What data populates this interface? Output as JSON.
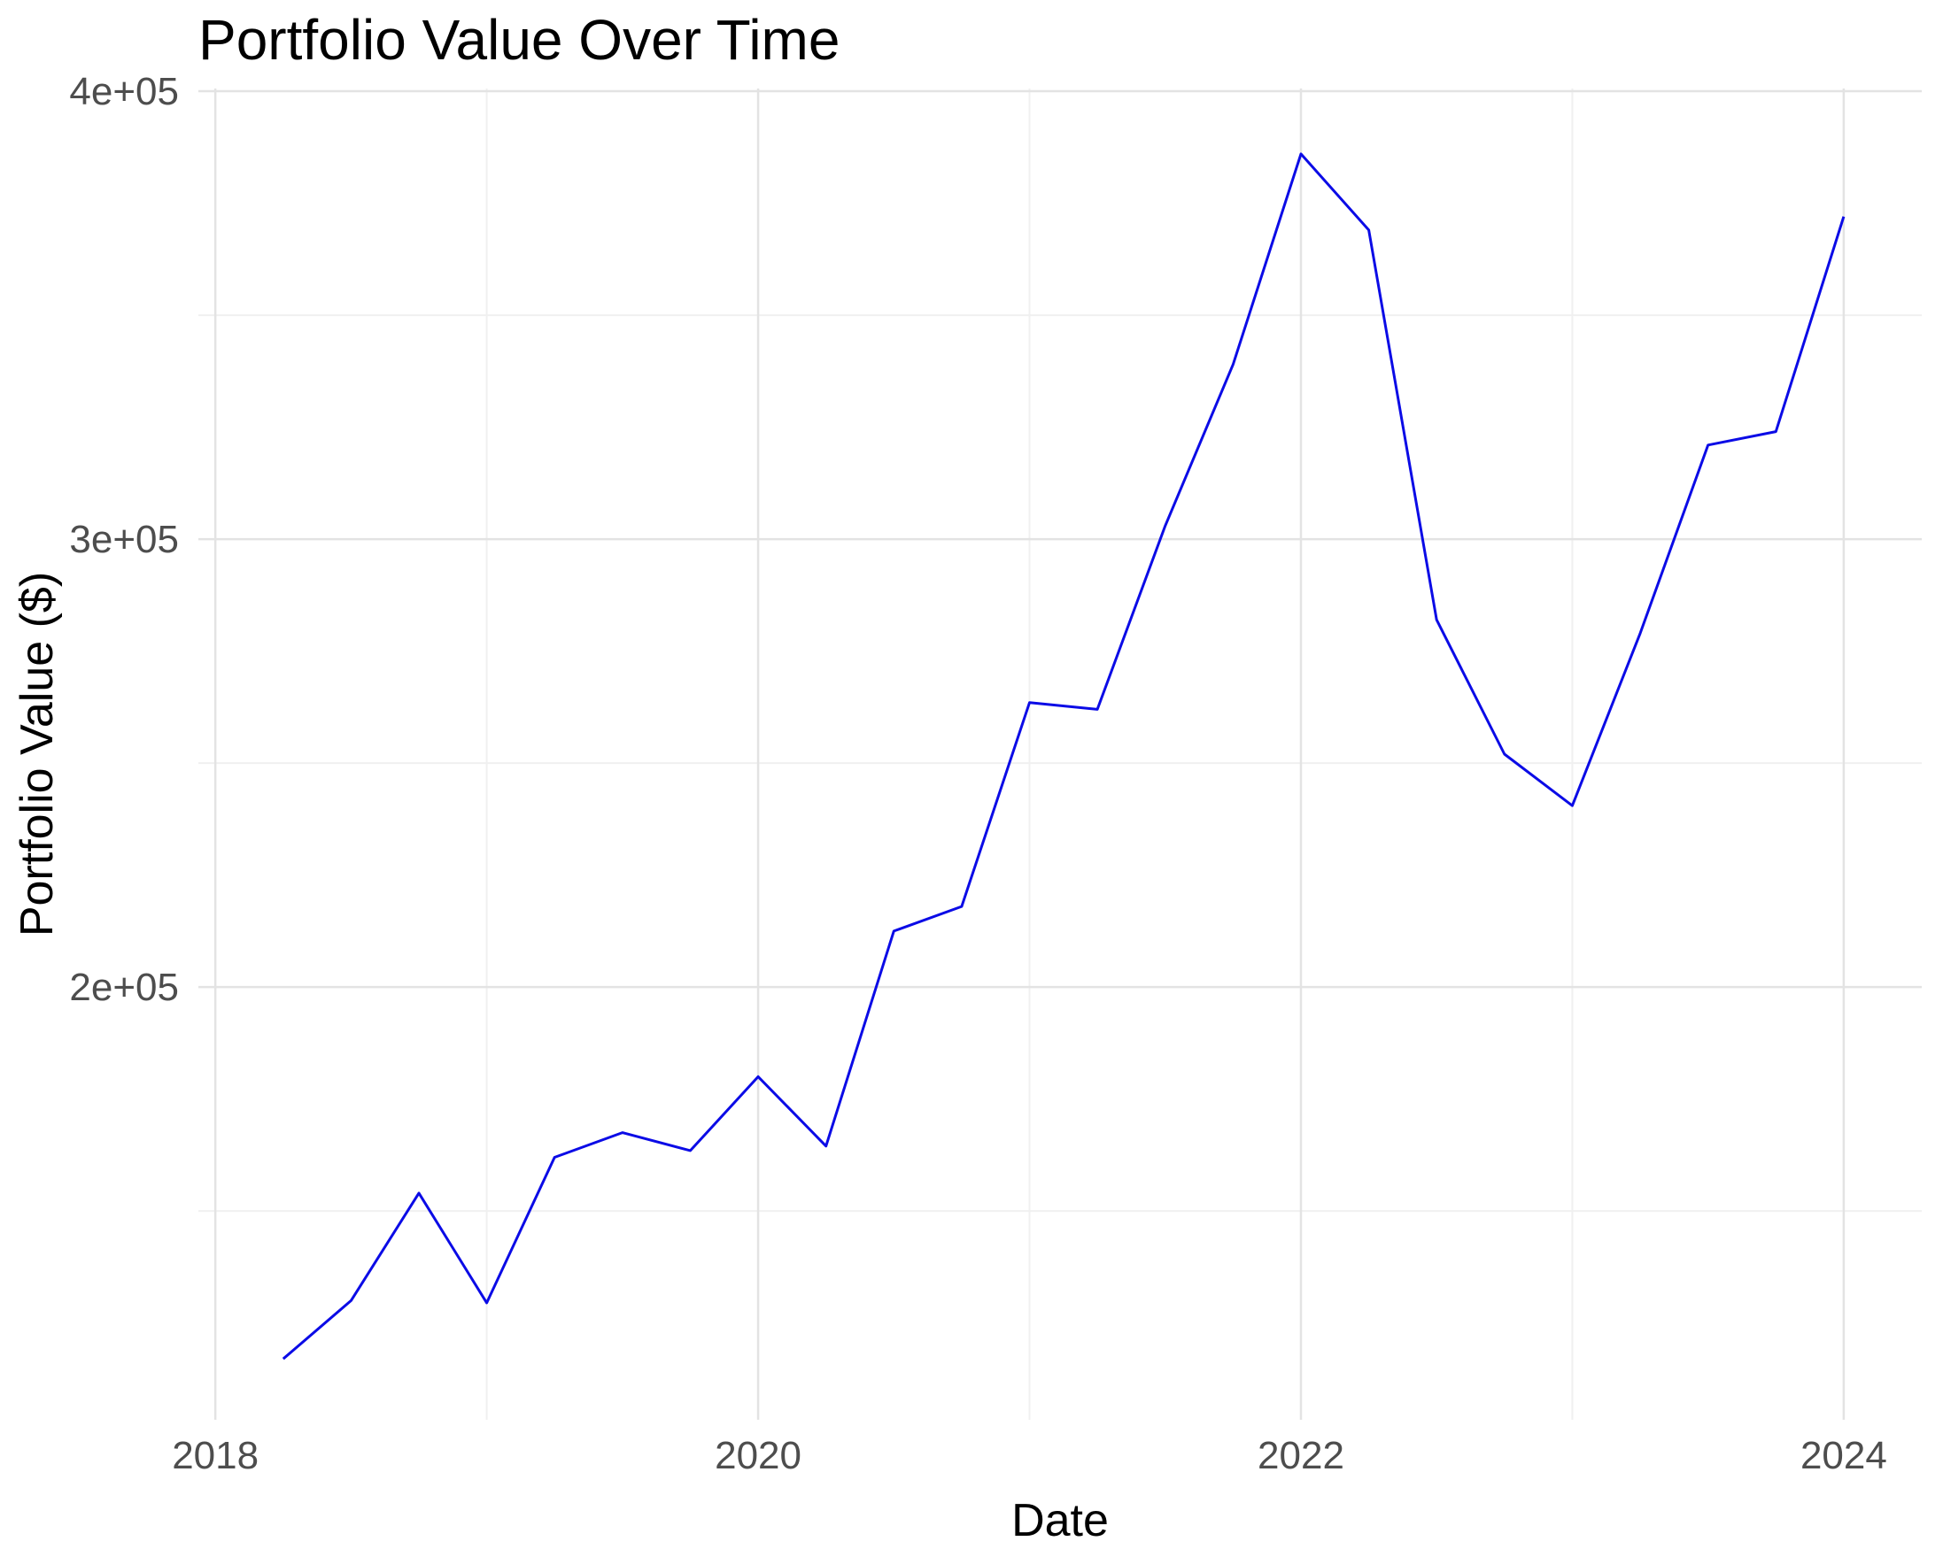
{
  "page": {
    "background": "#FFFFFF"
  },
  "chart_data": {
    "type": "line",
    "title": "Portfolio Value Over Time",
    "xlabel": "Date",
    "ylabel": "Portfolio Value ($)",
    "legend_position": "none",
    "grid": "major and minor, no axis lines, no tick marks",
    "panel_background": "#FFFFFF",
    "line_color": "#0B0BE6",
    "grid_major_color": "#E3E3E3",
    "grid_minor_color": "#F0F0F0",
    "tick_label_color": "#4D4D4D",
    "text_color": "#000000",
    "xlim": [
      2017.9375,
      2024.2875
    ],
    "ylim": [
      103400,
      400600
    ],
    "x_ticks": [
      {
        "x": 2018,
        "label": "2018"
      },
      {
        "x": 2020,
        "label": "2020"
      },
      {
        "x": 2022,
        "label": "2022"
      },
      {
        "x": 2024,
        "label": "2024"
      }
    ],
    "x_minor_ticks": [
      2019,
      2021,
      2023
    ],
    "y_ticks": [
      {
        "y": 200000,
        "label": "2e+05"
      },
      {
        "y": 300000,
        "label": "3e+05"
      },
      {
        "y": 400000,
        "label": "4e+05"
      }
    ],
    "y_minor_ticks": [
      150000,
      250000,
      350000
    ],
    "series": [
      {
        "name": "Portfolio Value",
        "points": [
          {
            "date": "2018-03-31",
            "x": 2018.25,
            "value": 117000
          },
          {
            "date": "2018-06-30",
            "x": 2018.5,
            "value": 130000
          },
          {
            "date": "2018-09-30",
            "x": 2018.75,
            "value": 154000
          },
          {
            "date": "2018-12-31",
            "x": 2019.0,
            "value": 129500
          },
          {
            "date": "2019-03-31",
            "x": 2019.25,
            "value": 162000
          },
          {
            "date": "2019-06-30",
            "x": 2019.5,
            "value": 167500
          },
          {
            "date": "2019-09-30",
            "x": 2019.75,
            "value": 163500
          },
          {
            "date": "2019-12-31",
            "x": 2020.0,
            "value": 180000
          },
          {
            "date": "2020-03-31",
            "x": 2020.25,
            "value": 164500
          },
          {
            "date": "2020-06-30",
            "x": 2020.5,
            "value": 212500
          },
          {
            "date": "2020-09-30",
            "x": 2020.75,
            "value": 218000
          },
          {
            "date": "2020-12-31",
            "x": 2021.0,
            "value": 263500
          },
          {
            "date": "2021-03-31",
            "x": 2021.25,
            "value": 262000
          },
          {
            "date": "2021-06-30",
            "x": 2021.5,
            "value": 303000
          },
          {
            "date": "2021-09-30",
            "x": 2021.75,
            "value": 339000
          },
          {
            "date": "2021-12-31",
            "x": 2022.0,
            "value": 386000
          },
          {
            "date": "2022-03-31",
            "x": 2022.25,
            "value": 369000
          },
          {
            "date": "2022-06-30",
            "x": 2022.5,
            "value": 282000
          },
          {
            "date": "2022-09-30",
            "x": 2022.75,
            "value": 252000
          },
          {
            "date": "2022-12-31",
            "x": 2023.0,
            "value": 240500
          },
          {
            "date": "2023-03-31",
            "x": 2023.25,
            "value": 279000
          },
          {
            "date": "2023-06-30",
            "x": 2023.5,
            "value": 321000
          },
          {
            "date": "2023-09-30",
            "x": 2023.75,
            "value": 324000
          },
          {
            "date": "2023-12-31",
            "x": 2024.0,
            "value": 372000
          }
        ]
      }
    ]
  }
}
